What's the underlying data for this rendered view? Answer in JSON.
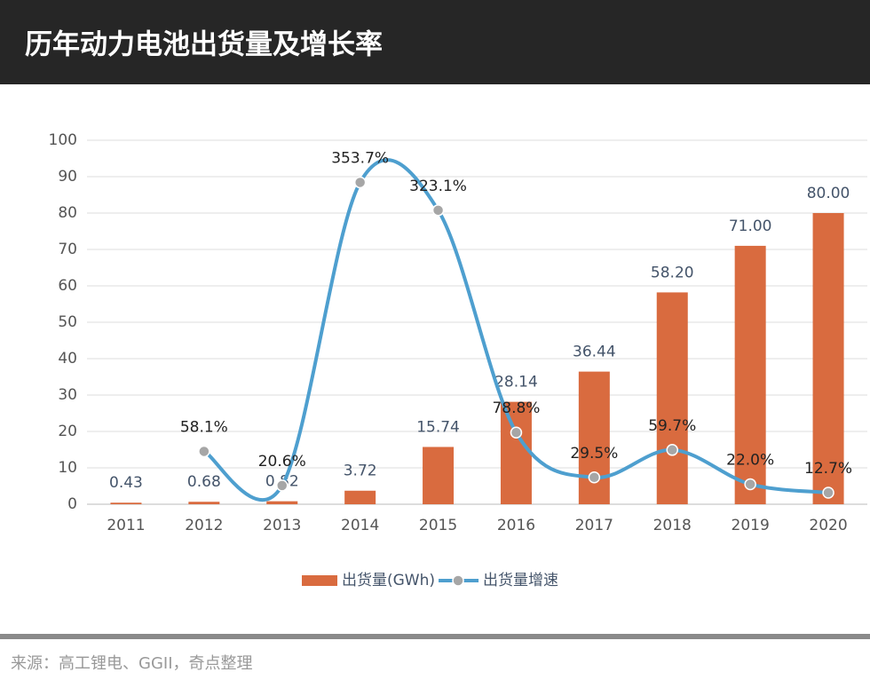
{
  "header": {
    "title": "历年动力电池出货量及增长率"
  },
  "chart_data": {
    "type": "bar-line",
    "categories": [
      "2011",
      "2012",
      "2013",
      "2014",
      "2015",
      "2016",
      "2017",
      "2018",
      "2019",
      "2020"
    ],
    "series": [
      {
        "name": "出货量(GWh)",
        "type": "bar",
        "color": "#d96b3f",
        "values": [
          0.43,
          0.68,
          0.82,
          3.72,
          15.74,
          28.14,
          36.44,
          58.2,
          71,
          80
        ],
        "value_labels": [
          "0.43",
          "0.68",
          "0.82",
          "3.72",
          "15.74",
          "28.14",
          "36.44",
          "58.20",
          "71.00",
          "80.00"
        ]
      },
      {
        "name": "出货量增速",
        "type": "line",
        "axis": "y2",
        "color": "#4e9fcf",
        "values": [
          null,
          58.1,
          20.6,
          353.7,
          323.1,
          78.8,
          29.5,
          59.7,
          22.0,
          12.7
        ],
        "value_labels": [
          null,
          "58.1%",
          "20.6%",
          "353.7%",
          "323.1%",
          "78.8%",
          "29.5%",
          "59.7%",
          "22.0%",
          "12.7%"
        ]
      }
    ],
    "ylim": [
      0,
      100
    ],
    "yticks": [
      0,
      10,
      20,
      30,
      40,
      50,
      60,
      70,
      80,
      90,
      100
    ],
    "y2lim": [
      0,
      400
    ],
    "grid": true,
    "legend": "bottom"
  },
  "footer": {
    "source": "来源：高工锂电、GGII，奇点整理"
  }
}
